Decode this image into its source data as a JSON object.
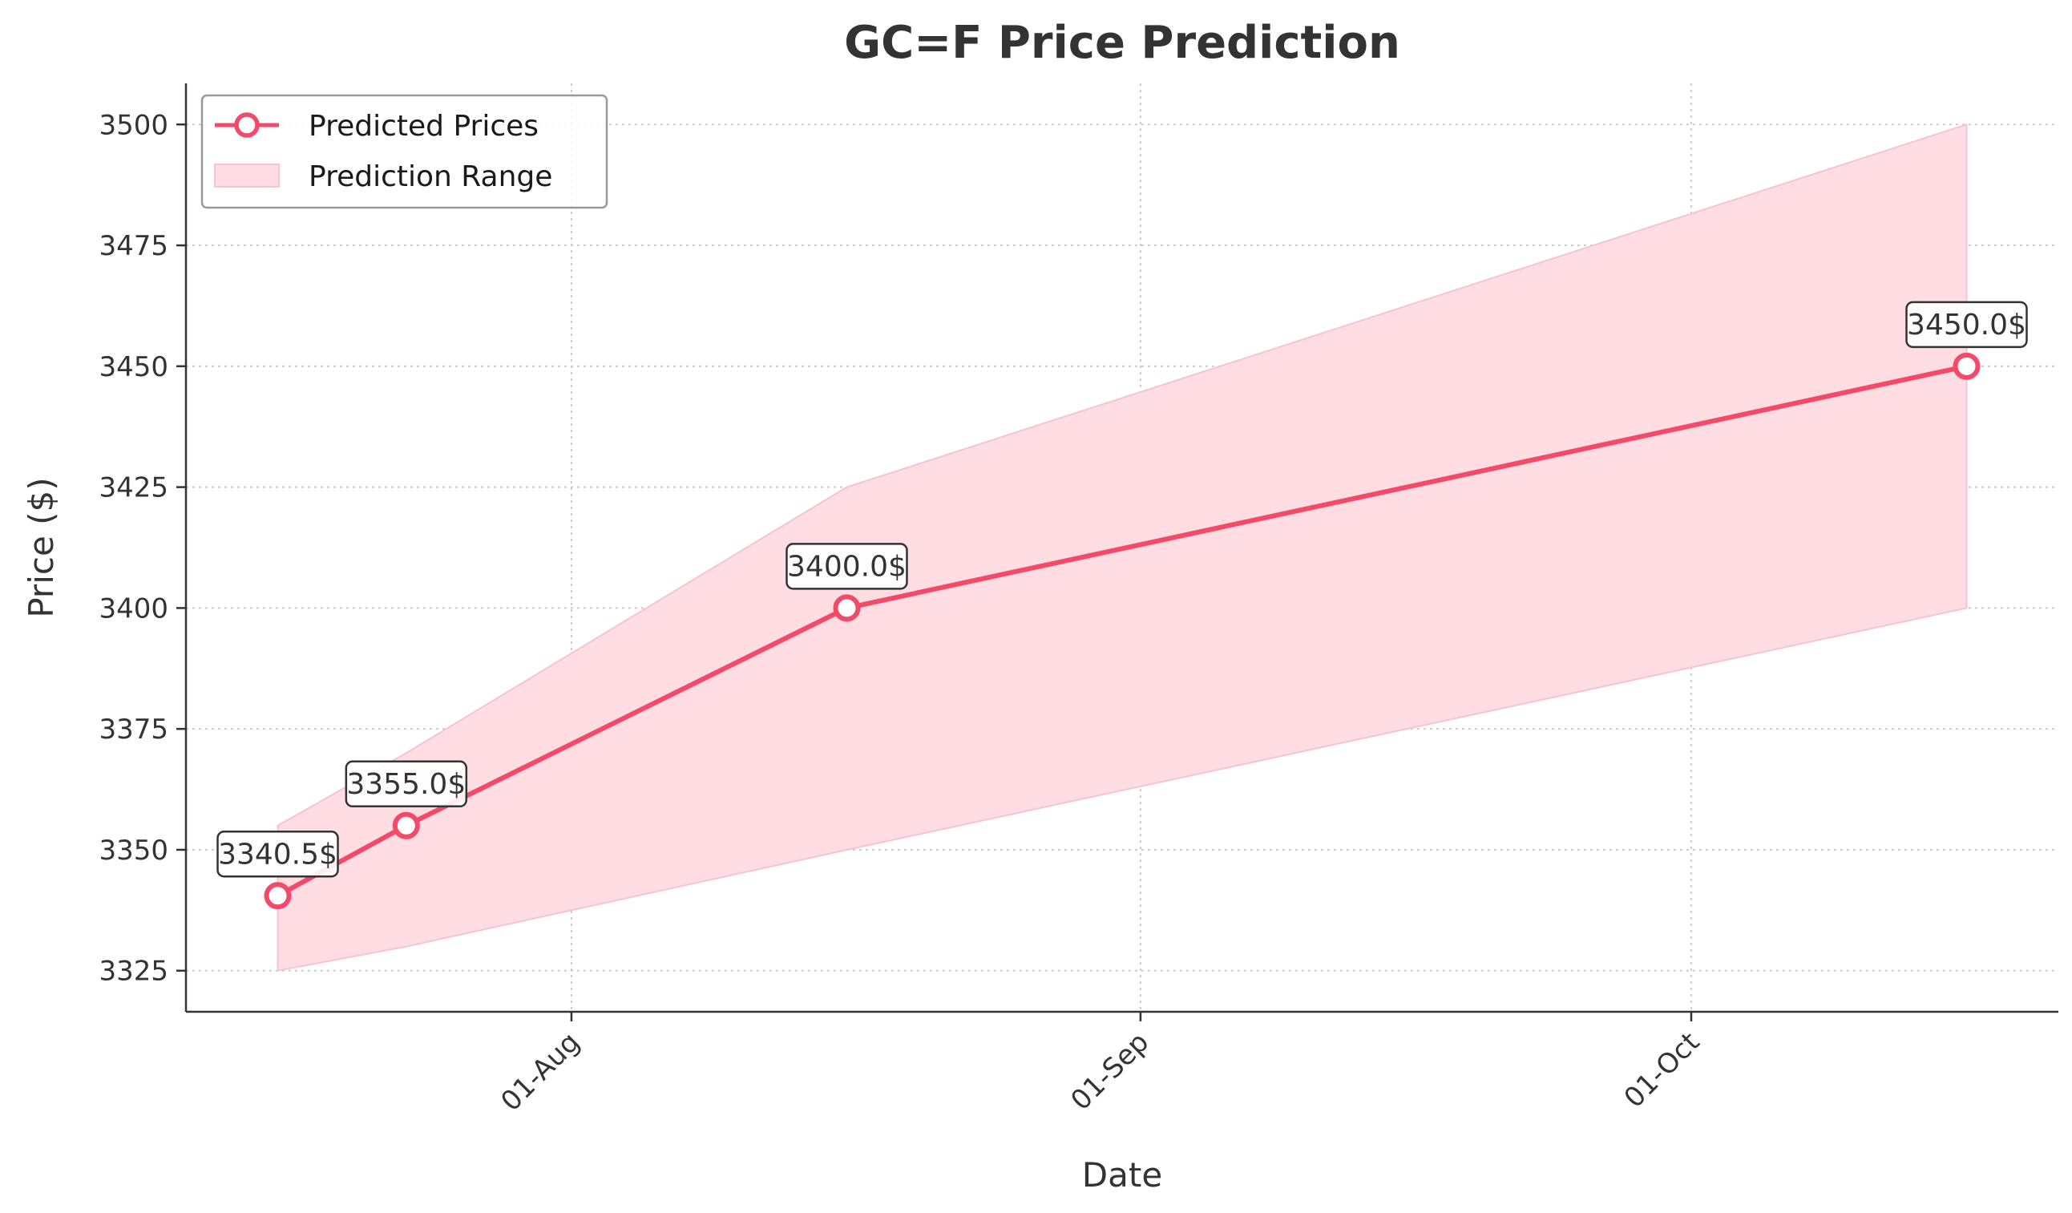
{
  "chart_data": {
    "type": "line",
    "title": "GC=F Price Prediction",
    "xlabel": "Date",
    "ylabel": "Price ($)",
    "x_dates": [
      "2025-07-16",
      "2025-07-23",
      "2025-08-16",
      "2025-10-16"
    ],
    "xlim": [
      "2025-07-11",
      "2025-10-21"
    ],
    "ylim": [
      3316.5,
      3508.5
    ],
    "xticks": [
      {
        "date": "2025-08-01",
        "label": "01-Aug"
      },
      {
        "date": "2025-09-01",
        "label": "01-Sep"
      },
      {
        "date": "2025-10-01",
        "label": "01-Oct"
      }
    ],
    "yticks": [
      3325,
      3350,
      3375,
      3400,
      3425,
      3450,
      3475,
      3500
    ],
    "grid": true,
    "legend_position": "top-left",
    "series": [
      {
        "name": "Predicted Prices",
        "kind": "line",
        "color": "#f24a68",
        "values": [
          3340.5,
          3355.0,
          3400.0,
          3450.0
        ],
        "annotations": [
          "3340.5$",
          "3355.0$",
          "3400.0$",
          "3450.0$"
        ]
      },
      {
        "name": "Prediction Range",
        "kind": "band",
        "color": "#ffdde3",
        "edge_color": "#f7c4cd",
        "lower": [
          3325.0,
          3330.0,
          3350.0,
          3400.0
        ],
        "upper": [
          3355.0,
          3370.0,
          3425.0,
          3500.0
        ]
      }
    ]
  }
}
